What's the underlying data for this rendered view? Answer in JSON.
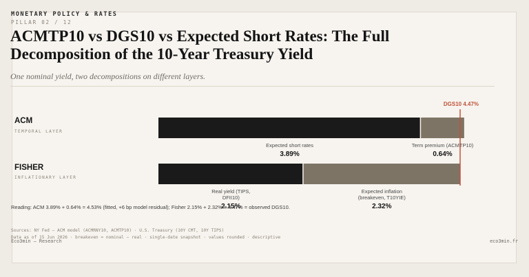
{
  "header": {
    "kicker": "MONETARY POLICY & RATES",
    "pillar": "PILLAR 02 / 12",
    "title": "ACMTP10 vs DGS10 vs Expected Short Rates: The Full Decomposition of the 10-Year Treasury Yield",
    "subtitle": "One nominal yield, two decompositions on different layers."
  },
  "chart_data": {
    "type": "bar",
    "orientation": "horizontal",
    "stacked": true,
    "xlim": [
      0,
      4.47
    ],
    "reference": {
      "label": "DGS10 4.47%",
      "value": 4.47,
      "color": "#c0533a"
    },
    "rows": [
      {
        "label": "ACM",
        "sublabel": "TEMPORAL LAYER",
        "segments": [
          {
            "name": "Expected short rates",
            "value": 3.89,
            "value_label": "3.89%",
            "color": "#1b1a1a"
          },
          {
            "name": "Term premium (ACMTP10)",
            "value": 0.64,
            "value_label": "0.64%",
            "color": "#7e7466"
          }
        ]
      },
      {
        "label": "FISHER",
        "sublabel": "INFLATIONARY LAYER",
        "segments": [
          {
            "name": "Real yield (TIPS, DFII10)",
            "name_lines": [
              "Real yield (TIPS,",
              "DFII10)"
            ],
            "value": 2.15,
            "value_label": "2.15%",
            "color": "#1b1a1a"
          },
          {
            "name": "Expected inflation (breakeven, T10YIE)",
            "name_lines": [
              "Expected inflation",
              "(breakeven, T10YIE)"
            ],
            "value": 2.32,
            "value_label": "2.32%",
            "color": "#7e7466"
          }
        ]
      }
    ]
  },
  "notes": {
    "reading": "Reading: ACM 3.89% + 0.64% = 4.53% (fitted, +6 bp model residual); Fisher 2.15% + 2.32% = 4.47% = observed DGS10.",
    "sources": "Sources: NY Fed — ACM model (ACMRNY10, ACMTP10) · U.S. Treasury (10Y CMT, 10Y TIPS)",
    "asof": "Data as of 15 Jun 2026 · breakeven = nominal − real · single-date snapshot · values rounded · descriptive"
  },
  "footer": {
    "left": "Eco3min — Research",
    "right": "eco3min.fr"
  }
}
